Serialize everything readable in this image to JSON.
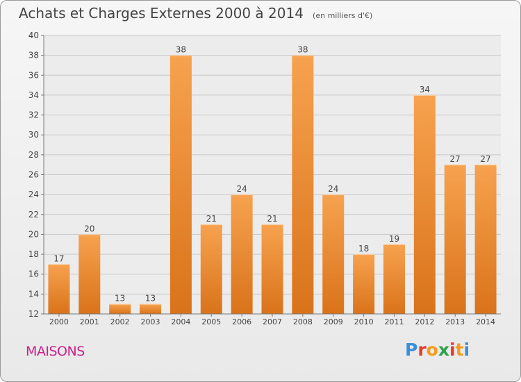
{
  "title": "Achats et Charges Externes 2000 à 2014",
  "subtitle": "(en milliers d'€)",
  "commune": "MAISONS",
  "logo": {
    "letters": [
      "P",
      "r",
      "o",
      "x",
      "i",
      "t",
      "i"
    ],
    "colors": [
      "#3a8fd8",
      "#e8392b",
      "#f39c1f",
      "#2aa24a",
      "#e8392b",
      "#f39c1f",
      "#3a8fd8"
    ]
  },
  "chart_data": {
    "type": "bar",
    "categories": [
      "2000",
      "2001",
      "2002",
      "2003",
      "2004",
      "2005",
      "2006",
      "2007",
      "2008",
      "2009",
      "2010",
      "2011",
      "2012",
      "2013",
      "2014"
    ],
    "values": [
      17,
      20,
      13,
      13,
      38,
      21,
      24,
      21,
      38,
      24,
      18,
      19,
      34,
      27,
      27
    ],
    "data_labels": [
      "17",
      "20",
      "13",
      "13",
      "38",
      "21",
      "24",
      "21",
      "38",
      "24",
      "18",
      "19",
      "34",
      "27",
      "27"
    ],
    "ylim": [
      12,
      40
    ],
    "yticks": [
      "12",
      "14",
      "16",
      "18",
      "20",
      "22",
      "24",
      "26",
      "28",
      "30",
      "32",
      "34",
      "36",
      "38",
      "40"
    ],
    "grid": true,
    "bar_color_top": "#f7a24f",
    "bar_color_bottom": "#d9731a"
  }
}
